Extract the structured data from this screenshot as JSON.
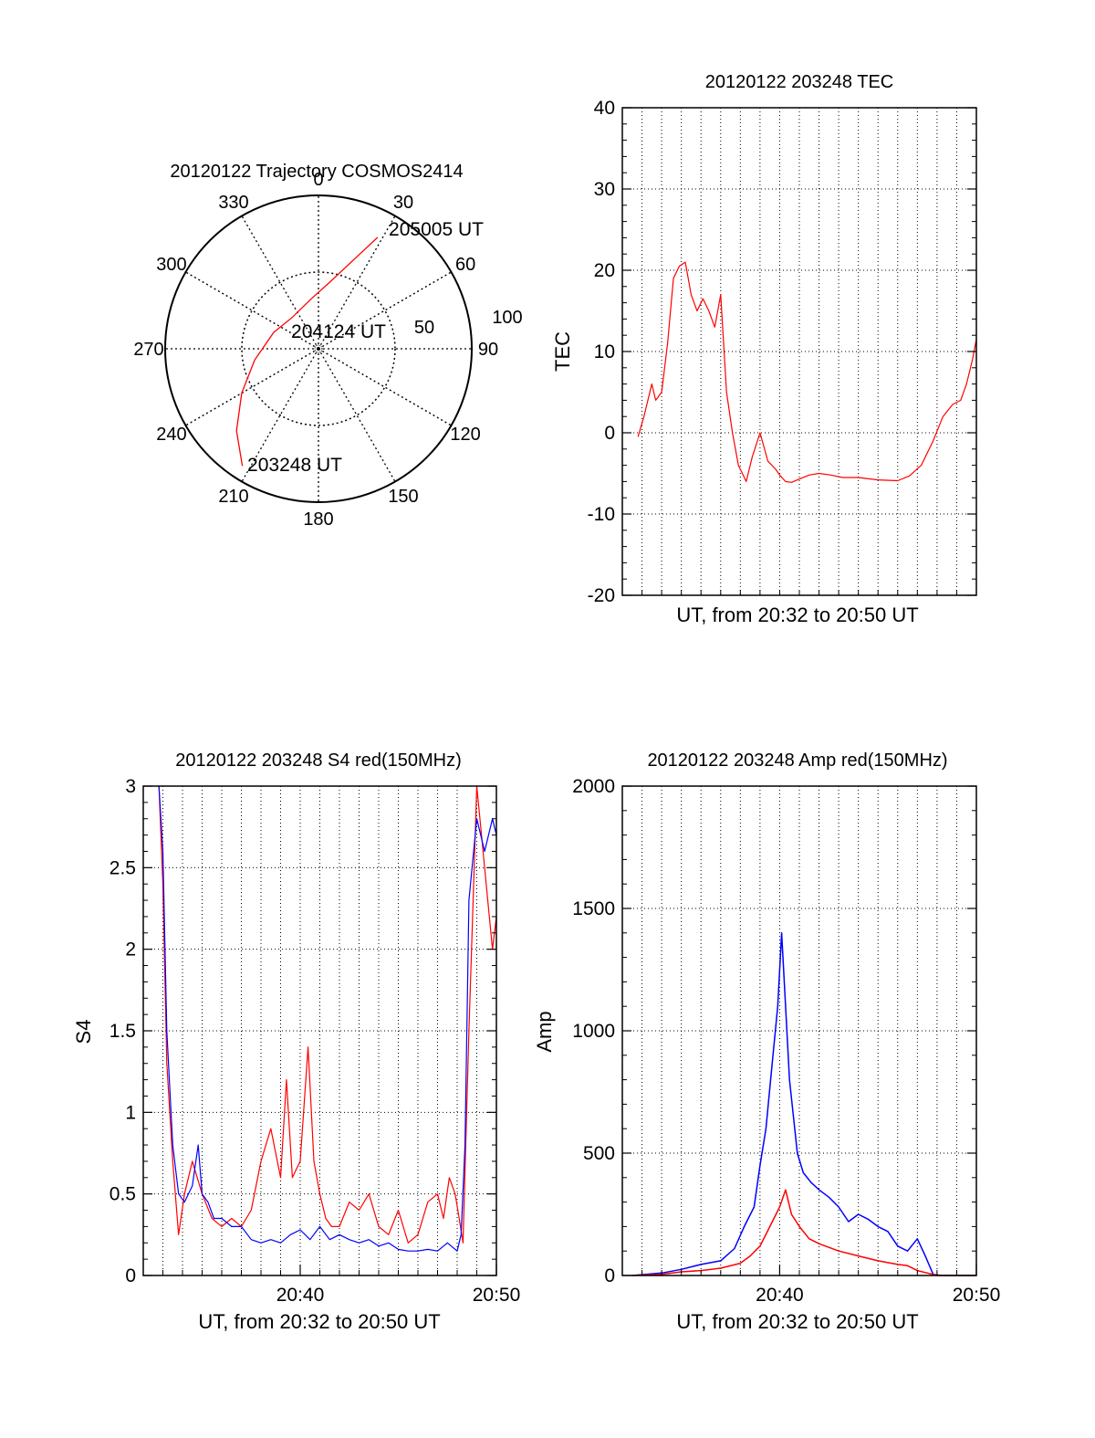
{
  "chart_data": [
    {
      "type": "polar",
      "title": "20120122 Trajectory COSMOS2414",
      "azimuth_labels": [
        "0",
        "30",
        "60",
        "90",
        "120",
        "150",
        "180",
        "210",
        "240",
        "270",
        "300",
        "330"
      ],
      "radial_labels": [
        "50",
        "100"
      ],
      "trajectory": {
        "color": "#ff0000",
        "points": [
          {
            "az": 213,
            "el": 8
          },
          {
            "az": 225,
            "el": 22
          },
          {
            "az": 240,
            "el": 38
          },
          {
            "az": 260,
            "el": 52
          },
          {
            "az": 290,
            "el": 62
          },
          {
            "az": 320,
            "el": 66
          },
          {
            "az": 350,
            "el": 61
          },
          {
            "az": 10,
            "el": 50
          },
          {
            "az": 22,
            "el": 33
          },
          {
            "az": 28,
            "el": 16
          }
        ]
      },
      "annotations": [
        {
          "text": "205005 UT",
          "az": 30,
          "el": 10
        },
        {
          "text": "204124 UT",
          "az": 0,
          "el": 90
        },
        {
          "text": "203248 UT",
          "az": 210,
          "el": 10
        }
      ]
    },
    {
      "type": "line",
      "title": "20120122 203248 TEC",
      "xlabel": "UT, from 20:32 to 20:50 UT",
      "ylabel": "TEC",
      "xlim": [
        0,
        18
      ],
      "ylim": [
        -20,
        40
      ],
      "yticks": [
        -20,
        -10,
        0,
        10,
        20,
        30,
        40
      ],
      "grid": true,
      "series": [
        {
          "color": "#ff0000",
          "x": [
            0.8,
            1.1,
            1.3,
            1.5,
            1.7,
            2.0,
            2.3,
            2.6,
            2.9,
            3.2,
            3.5,
            3.8,
            4.1,
            4.4,
            4.7,
            5.0,
            5.3,
            5.6,
            5.9,
            6.3,
            6.6,
            7.0,
            7.4,
            7.8,
            8.0,
            8.3,
            8.6,
            9.0,
            9.5,
            10.0,
            10.6,
            11.2,
            12.0,
            13.0,
            14.0,
            14.6,
            15.2,
            15.8,
            16.3,
            16.8,
            17.2,
            17.5,
            17.8,
            18.0
          ],
          "y": [
            -0.5,
            2,
            4,
            6,
            4,
            5,
            11,
            19,
            20.5,
            21,
            17,
            15,
            16.5,
            15,
            13,
            17,
            5,
            0,
            -4,
            -6,
            -3,
            0,
            -3.5,
            -4.5,
            -5.2,
            -6,
            -6.1,
            -5.7,
            -5.2,
            -5,
            -5.2,
            -5.5,
            -5.5,
            -5.8,
            -5.9,
            -5.3,
            -4,
            -1,
            2,
            3.5,
            4,
            6,
            9,
            11.5
          ]
        }
      ]
    },
    {
      "type": "line",
      "title": "20120122 203248 S4 red(150MHz)",
      "xlabel": "UT, from 20:32 to 20:50 UT",
      "ylabel": "S4",
      "xlim": [
        0,
        18
      ],
      "ylim": [
        0,
        3
      ],
      "yticks": [
        "0",
        "0.5",
        "1",
        "1.5",
        "2",
        "2.5",
        "3"
      ],
      "xticks": [
        {
          "x": 8,
          "label": "20:40"
        },
        {
          "x": 18,
          "label": "20:50"
        }
      ],
      "grid": true,
      "series": [
        {
          "color": "#ff0000",
          "x": [
            0.8,
            1.0,
            1.2,
            1.5,
            1.8,
            2.1,
            2.5,
            3.0,
            3.5,
            4.0,
            4.5,
            5.0,
            5.5,
            6.0,
            6.5,
            7.0,
            7.3,
            7.6,
            8.0,
            8.4,
            8.7,
            9.0,
            9.3,
            9.6,
            10.0,
            10.5,
            11.0,
            11.5,
            12.0,
            12.5,
            13.0,
            13.5,
            14.0,
            14.5,
            15.0,
            15.3,
            15.6,
            15.9,
            16.1,
            16.3,
            16.6,
            17.0,
            17.4,
            17.8,
            18.0
          ],
          "y": [
            3.0,
            2.4,
            1.3,
            0.7,
            0.25,
            0.5,
            0.7,
            0.5,
            0.35,
            0.3,
            0.35,
            0.3,
            0.4,
            0.7,
            0.9,
            0.6,
            1.2,
            0.6,
            0.7,
            1.4,
            0.7,
            0.5,
            0.35,
            0.3,
            0.3,
            0.45,
            0.4,
            0.5,
            0.3,
            0.25,
            0.4,
            0.2,
            0.25,
            0.45,
            0.5,
            0.35,
            0.6,
            0.5,
            0.35,
            0.2,
            1.5,
            3.0,
            2.5,
            2.0,
            2.2
          ]
        },
        {
          "color": "#0000ff",
          "x": [
            0.8,
            1.0,
            1.2,
            1.5,
            1.8,
            2.1,
            2.5,
            2.8,
            3.0,
            3.3,
            3.6,
            4.0,
            4.5,
            5.0,
            5.5,
            6.0,
            6.5,
            7.0,
            7.5,
            8.0,
            8.5,
            9.0,
            9.5,
            10.0,
            10.5,
            11.0,
            11.5,
            12.0,
            12.5,
            13.0,
            13.5,
            14.0,
            14.5,
            15.0,
            15.5,
            16.0,
            16.2,
            16.4,
            16.6,
            17.0,
            17.4,
            17.8,
            18.0
          ],
          "y": [
            3.0,
            2.6,
            1.5,
            0.8,
            0.5,
            0.45,
            0.55,
            0.8,
            0.5,
            0.45,
            0.35,
            0.35,
            0.3,
            0.3,
            0.22,
            0.2,
            0.22,
            0.2,
            0.25,
            0.28,
            0.22,
            0.3,
            0.22,
            0.25,
            0.22,
            0.2,
            0.22,
            0.18,
            0.2,
            0.16,
            0.15,
            0.15,
            0.16,
            0.15,
            0.2,
            0.15,
            0.25,
            0.8,
            2.3,
            2.8,
            2.6,
            2.8,
            2.7
          ]
        }
      ]
    },
    {
      "type": "line",
      "title": "20120122 203248 Amp red(150MHz)",
      "xlabel": "UT, from 20:32 to 20:50 UT",
      "ylabel": "Amp",
      "xlim": [
        0,
        18
      ],
      "ylim": [
        0,
        2000
      ],
      "yticks": [
        "0",
        "500",
        "1000",
        "1500",
        "2000"
      ],
      "xticks": [
        {
          "x": 8,
          "label": "20:40"
        },
        {
          "x": 18,
          "label": "20:50"
        }
      ],
      "grid": true,
      "series": [
        {
          "color": "#0000ff",
          "x": [
            0.5,
            2.0,
            3.0,
            4.0,
            5.0,
            5.7,
            6.2,
            6.7,
            7.0,
            7.3,
            7.6,
            7.9,
            8.1,
            8.3,
            8.5,
            8.7,
            8.9,
            9.2,
            9.6,
            10.0,
            10.5,
            11.0,
            11.5,
            12.0,
            12.5,
            13.0,
            13.5,
            14.0,
            14.5,
            15.0,
            15.4,
            15.8,
            16.2,
            16.6,
            17.0,
            18.0
          ],
          "y": [
            0,
            10,
            25,
            45,
            60,
            110,
            200,
            280,
            450,
            600,
            850,
            1100,
            1400,
            1100,
            800,
            650,
            500,
            420,
            380,
            350,
            320,
            280,
            220,
            250,
            230,
            200,
            180,
            120,
            100,
            150,
            80,
            5,
            0,
            0,
            0,
            0
          ]
        },
        {
          "color": "#ff0000",
          "x": [
            0.5,
            2.0,
            3.0,
            4.0,
            5.0,
            6.0,
            6.5,
            7.0,
            7.5,
            8.0,
            8.3,
            8.6,
            9.0,
            9.5,
            10.0,
            11.0,
            12.0,
            13.0,
            14.0,
            14.5,
            15.0,
            16.0,
            18.0
          ],
          "y": [
            0,
            5,
            15,
            20,
            30,
            50,
            80,
            120,
            200,
            280,
            350,
            250,
            200,
            150,
            130,
            100,
            80,
            60,
            45,
            40,
            20,
            0,
            0
          ]
        }
      ]
    }
  ]
}
